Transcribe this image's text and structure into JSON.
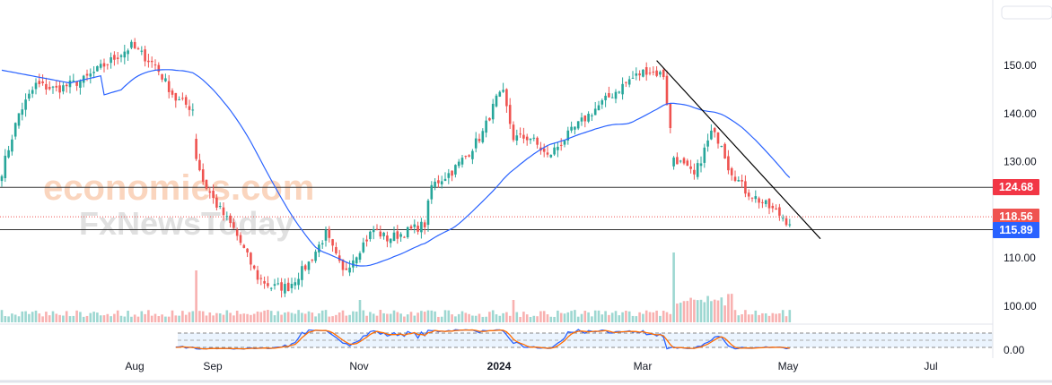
{
  "chart_data": {
    "type": "candlestick",
    "price_axis": {
      "ticks": [
        "150.00",
        "140.00",
        "130.00",
        "110.00",
        "100.00"
      ],
      "ylim": [
        96,
        156
      ]
    },
    "stoch_axis": {
      "ticks": [
        "0.00"
      ]
    },
    "time_axis": {
      "ticks": [
        "Aug",
        "Sep",
        "Nov",
        "2024",
        "Mar",
        "May",
        "Jul"
      ]
    },
    "close_anchors": [
      [
        0,
        128
      ],
      [
        5,
        140
      ],
      [
        10,
        146
      ],
      [
        16,
        145
      ],
      [
        24,
        147
      ],
      [
        32,
        151
      ],
      [
        38,
        154
      ],
      [
        45,
        150
      ],
      [
        51,
        143
      ],
      [
        56,
        141
      ],
      [
        57,
        131
      ],
      [
        59,
        126
      ],
      [
        63,
        121
      ],
      [
        68,
        116
      ],
      [
        75,
        106
      ],
      [
        79,
        104
      ],
      [
        84,
        104
      ],
      [
        90,
        109
      ],
      [
        95,
        115
      ],
      [
        100,
        107
      ],
      [
        105,
        112
      ],
      [
        109,
        116
      ],
      [
        113,
        114
      ],
      [
        117,
        115
      ],
      [
        124,
        117
      ],
      [
        126,
        125
      ],
      [
        132,
        128
      ],
      [
        137,
        132
      ],
      [
        141,
        136
      ],
      [
        145,
        143
      ],
      [
        147,
        144
      ],
      [
        150,
        135
      ],
      [
        155,
        135
      ],
      [
        160,
        131
      ],
      [
        164,
        134
      ],
      [
        168,
        137
      ],
      [
        174,
        141
      ],
      [
        179,
        144
      ],
      [
        184,
        147
      ],
      [
        189,
        149
      ],
      [
        194,
        148
      ],
      [
        197,
        131
      ],
      [
        203,
        127
      ],
      [
        208,
        136
      ],
      [
        211,
        134
      ],
      [
        213,
        129
      ],
      [
        218,
        124
      ],
      [
        224,
        121
      ],
      [
        229,
        118.5
      ],
      [
        231,
        117
      ]
    ],
    "levels": [
      {
        "value": 124.68,
        "label": "124.68",
        "color": "#f23645",
        "style": "solid"
      },
      {
        "value": 118.56,
        "label": "118.56",
        "color": "#ef5350",
        "style": "dotted"
      },
      {
        "value": 115.89,
        "label": "115.89",
        "color": "#2962ff",
        "style": "solid"
      }
    ],
    "trendline": [
      [
        192,
        151
      ],
      [
        240,
        114
      ]
    ],
    "colors": {
      "up": "#26a69a",
      "down": "#ef5350",
      "ma": "#2962ff",
      "stochK": "#2962ff",
      "stochD": "#ff6d00"
    },
    "watermark": [
      "economies.com",
      "FxNewsToday"
    ]
  }
}
